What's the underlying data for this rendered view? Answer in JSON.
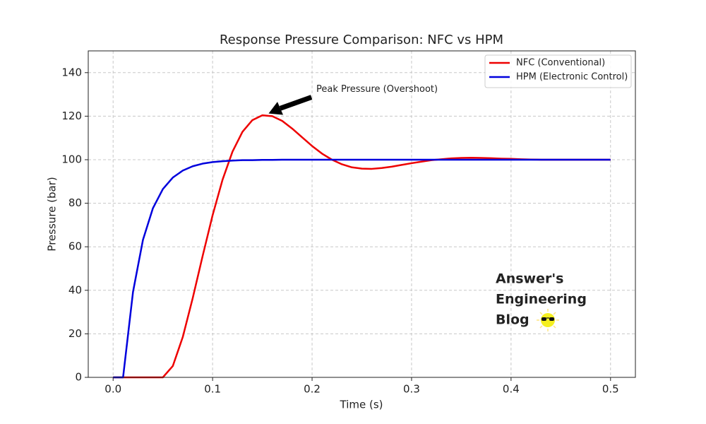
{
  "chart_data": {
    "type": "line",
    "title": "Response Pressure Comparison: NFC vs HPM",
    "x_label": "Time (s)",
    "y_label": "Pressure (bar)",
    "x": [
      0,
      0.01,
      0.02,
      0.03,
      0.04,
      0.05,
      0.06,
      0.07,
      0.08,
      0.09,
      0.1,
      0.11,
      0.12,
      0.13,
      0.14,
      0.15,
      0.16,
      0.17,
      0.18,
      0.19,
      0.2,
      0.21,
      0.22,
      0.23,
      0.24,
      0.25,
      0.26,
      0.27,
      0.28,
      0.29,
      0.3,
      0.31,
      0.32,
      0.33,
      0.34,
      0.35,
      0.36,
      0.37,
      0.38,
      0.39,
      0.4,
      0.41,
      0.42,
      0.43,
      0.44,
      0.45,
      0.46,
      0.47,
      0.48,
      0.49,
      0.5
    ],
    "series": [
      {
        "name": "NFC (Conventional)",
        "color": "#ee0000",
        "values": [
          0,
          0,
          0,
          0,
          0,
          0,
          5.2,
          18.5,
          36.4,
          55.8,
          74.5,
          90.8,
          103.7,
          112.8,
          118.2,
          120.4,
          120.0,
          117.8,
          114.3,
          110.3,
          106.3,
          102.8,
          100.0,
          97.9,
          96.5,
          95.9,
          95.8,
          96.2,
          96.8,
          97.6,
          98.4,
          99.1,
          99.8,
          100.2,
          100.6,
          100.8,
          100.9,
          100.8,
          100.7,
          100.5,
          100.4,
          100.2,
          100.1,
          100,
          100,
          100,
          100,
          100,
          100,
          100,
          100
        ]
      },
      {
        "name": "HPM (Electronic Control)",
        "color": "#0000dd",
        "values": [
          0,
          0,
          39.3,
          63.2,
          77.7,
          86.5,
          91.8,
          95.0,
          97.0,
          98.2,
          98.9,
          99.3,
          99.6,
          99.8,
          99.8,
          99.9,
          99.9,
          100,
          100,
          100,
          100,
          100,
          100,
          100,
          100,
          100,
          100,
          100,
          100,
          100,
          100,
          100,
          100,
          100,
          100,
          100,
          100,
          100,
          100,
          100,
          100,
          100,
          100,
          100,
          100,
          100,
          100,
          100,
          100,
          100,
          100
        ]
      }
    ],
    "xlim": [
      -0.025,
      0.525
    ],
    "ylim": [
      0,
      150
    ],
    "xticks": [
      {
        "value": 0,
        "label": "0.0"
      },
      0.1,
      0.2,
      0.3,
      0.4,
      0.5
    ],
    "yticks": [
      0,
      20,
      40,
      60,
      80,
      100,
      120,
      140
    ],
    "grid": true,
    "legend": "upper right",
    "annotation": {
      "text": "Peak Pressure (Overshoot)",
      "xy": [
        0.155,
        121
      ],
      "xytext": [
        0.2,
        130
      ]
    },
    "watermark": {
      "lines": [
        "Answer's",
        "Engineering",
        "Blog"
      ]
    }
  }
}
